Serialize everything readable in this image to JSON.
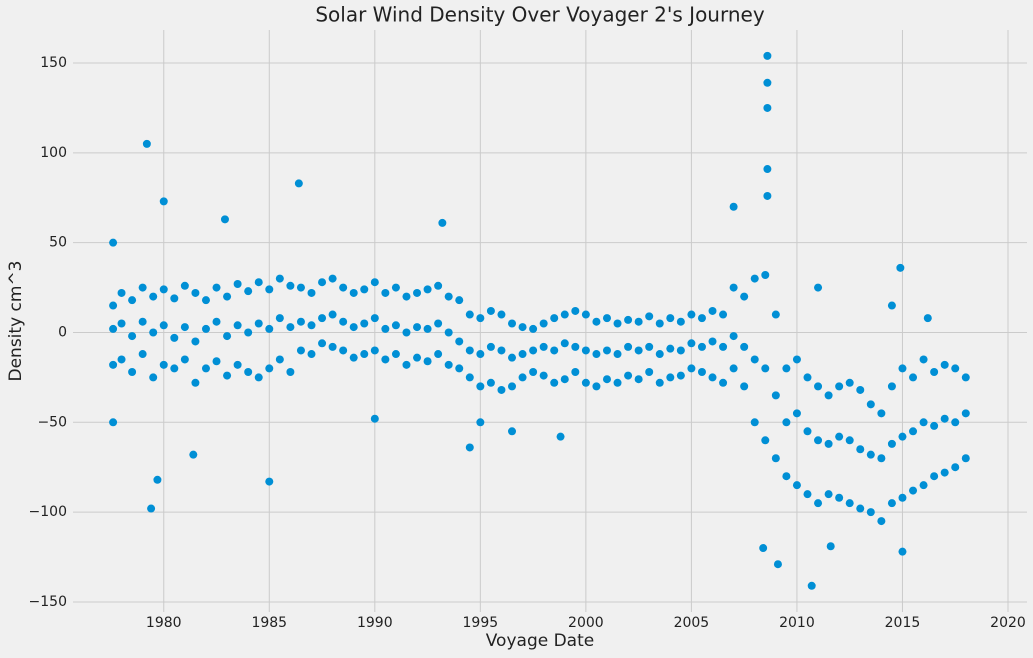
{
  "chart_data": {
    "type": "scatter",
    "title": "Solar Wind Density Over Voyager 2's Journey",
    "xlabel": "Voyage Date",
    "ylabel": "Density cm^3",
    "color": "#008fd5",
    "grid": true,
    "xlim": [
      1975.7,
      2020.9
    ],
    "ylim": [
      -155.6,
      168.4
    ],
    "xticks": [
      1980,
      1985,
      1990,
      1995,
      2000,
      2005,
      2010,
      2015,
      2020
    ],
    "yticks": [
      {
        "value": -150,
        "label": "−150"
      },
      {
        "value": -100,
        "label": "−100"
      },
      {
        "value": -50,
        "label": "−50"
      },
      0,
      50,
      100,
      150
    ],
    "x": [
      1977.6,
      1977.6,
      1977.6,
      1978.0,
      1978.0,
      1978.0,
      1978.5,
      1978.5,
      1978.5,
      1979.0,
      1979.0,
      1979.0,
      1979.5,
      1979.5,
      1979.5,
      1980.0,
      1980.0,
      1980.0,
      1980.5,
      1980.5,
      1980.5,
      1981.0,
      1981.0,
      1981.0,
      1981.5,
      1981.5,
      1981.5,
      1982.0,
      1982.0,
      1982.0,
      1982.5,
      1982.5,
      1982.5,
      1983.0,
      1983.0,
      1983.0,
      1983.5,
      1983.5,
      1983.5,
      1984.0,
      1984.0,
      1984.0,
      1984.5,
      1984.5,
      1984.5,
      1985.0,
      1985.0,
      1985.0,
      1985.5,
      1985.5,
      1985.5,
      1986.0,
      1986.0,
      1986.0,
      1986.5,
      1986.5,
      1986.5,
      1987.0,
      1987.0,
      1987.0,
      1987.5,
      1987.5,
      1987.5,
      1988.0,
      1988.0,
      1988.0,
      1988.5,
      1988.5,
      1988.5,
      1989.0,
      1989.0,
      1989.0,
      1989.5,
      1989.5,
      1989.5,
      1990.0,
      1990.0,
      1990.0,
      1990.5,
      1990.5,
      1990.5,
      1991.0,
      1991.0,
      1991.0,
      1991.5,
      1991.5,
      1991.5,
      1992.0,
      1992.0,
      1992.0,
      1992.5,
      1992.5,
      1992.5,
      1993.0,
      1993.0,
      1993.0,
      1993.5,
      1993.5,
      1993.5,
      1994.0,
      1994.0,
      1994.0,
      1994.5,
      1994.5,
      1994.5,
      1995.0,
      1995.0,
      1995.0,
      1995.5,
      1995.5,
      1995.5,
      1996.0,
      1996.0,
      1996.0,
      1996.5,
      1996.5,
      1996.5,
      1997.0,
      1997.0,
      1997.0,
      1997.5,
      1997.5,
      1997.5,
      1998.0,
      1998.0,
      1998.0,
      1998.5,
      1998.5,
      1998.5,
      1999.0,
      1999.0,
      1999.0,
      1999.5,
      1999.5,
      1999.5,
      2000.0,
      2000.0,
      2000.0,
      2000.5,
      2000.5,
      2000.5,
      2001.0,
      2001.0,
      2001.0,
      2001.5,
      2001.5,
      2001.5,
      2002.0,
      2002.0,
      2002.0,
      2002.5,
      2002.5,
      2002.5,
      2003.0,
      2003.0,
      2003.0,
      2003.5,
      2003.5,
      2003.5,
      2004.0,
      2004.0,
      2004.0,
      2004.5,
      2004.5,
      2004.5,
      2005.0,
      2005.0,
      2005.0,
      2005.5,
      2005.5,
      2005.5,
      2006.0,
      2006.0,
      2006.0,
      2006.5,
      2006.5,
      2006.5,
      2007.0,
      2007.0,
      2007.0,
      2007.5,
      2007.5,
      2007.5,
      2008.0,
      2008.0,
      2008.0,
      2008.5,
      2008.5,
      2008.5,
      2009.0,
      2009.0,
      2009.0,
      2009.5,
      2009.5,
      2009.5,
      2010.0,
      2010.0,
      2010.0,
      2010.5,
      2010.5,
      2010.5,
      2011.0,
      2011.0,
      2011.0,
      2011.5,
      2011.5,
      2011.5,
      2012.0,
      2012.0,
      2012.0,
      2012.5,
      2012.5,
      2012.5,
      2013.0,
      2013.0,
      2013.0,
      2013.5,
      2013.5,
      2013.5,
      2014.0,
      2014.0,
      2014.0,
      2014.5,
      2014.5,
      2014.5,
      2015.0,
      2015.0,
      2015.0,
      2015.5,
      2015.5,
      2015.5,
      2016.0,
      2016.0,
      2016.0,
      2016.5,
      2016.5,
      2016.5,
      2017.0,
      2017.0,
      2017.0,
      2017.5,
      2017.5,
      2017.5,
      2018.0,
      2018.0,
      2018.0,
      1977.6,
      1977.6,
      1979.2,
      1979.4,
      1979.7,
      1980.0,
      1981.4,
      1982.9,
      1985.0,
      1986.4,
      1993.2,
      1994.5,
      1990.0,
      1995.0,
      1996.5,
      1998.8,
      2007.0,
      2008.6,
      2008.6,
      2008.6,
      2008.6,
      2008.6,
      2008.4,
      2009.1,
      2010.7,
      2011.0,
      2014.9,
      2015.0,
      2011.6,
      2016.2,
      2014.5
    ],
    "values": [
      15,
      2,
      -18,
      22,
      5,
      -15,
      18,
      -2,
      -22,
      25,
      6,
      -12,
      20,
      0,
      -25,
      24,
      4,
      -18,
      19,
      -3,
      -20,
      26,
      3,
      -15,
      22,
      -5,
      -28,
      18,
      2,
      -20,
      25,
      6,
      -16,
      20,
      -2,
      -24,
      27,
      4,
      -18,
      23,
      0,
      -22,
      28,
      5,
      -25,
      24,
      2,
      -20,
      30,
      8,
      -15,
      26,
      3,
      -22,
      25,
      6,
      -10,
      22,
      4,
      -12,
      28,
      8,
      -6,
      30,
      10,
      -8,
      25,
      6,
      -10,
      22,
      3,
      -14,
      24,
      5,
      -12,
      28,
      8,
      -10,
      22,
      2,
      -15,
      25,
      4,
      -12,
      20,
      0,
      -18,
      22,
      3,
      -14,
      24,
      2,
      -16,
      26,
      5,
      -12,
      20,
      0,
      -18,
      18,
      -5,
      -20,
      10,
      -10,
      -25,
      8,
      -12,
      -30,
      12,
      -8,
      -28,
      10,
      -10,
      -32,
      5,
      -14,
      -30,
      3,
      -12,
      -25,
      2,
      -10,
      -22,
      5,
      -8,
      -24,
      8,
      -10,
      -28,
      10,
      -6,
      -26,
      12,
      -8,
      -22,
      10,
      -10,
      -28,
      6,
      -12,
      -30,
      8,
      -10,
      -26,
      5,
      -12,
      -28,
      7,
      -8,
      -24,
      6,
      -10,
      -26,
      9,
      -8,
      -22,
      5,
      -12,
      -28,
      8,
      -9,
      -25,
      6,
      -10,
      -24,
      10,
      -6,
      -20,
      8,
      -8,
      -22,
      12,
      -5,
      -25,
      10,
      -8,
      -28,
      25,
      -2,
      -20,
      20,
      -8,
      -30,
      30,
      -15,
      -50,
      32,
      -20,
      -60,
      10,
      -35,
      -70,
      -20,
      -50,
      -80,
      -15,
      -45,
      -85,
      -25,
      -55,
      -90,
      -30,
      -60,
      -95,
      -35,
      -62,
      -90,
      -30,
      -58,
      -92,
      -28,
      -60,
      -95,
      -32,
      -65,
      -98,
      -40,
      -68,
      -100,
      -45,
      -70,
      -105,
      -30,
      -62,
      -95,
      -20,
      -58,
      -92,
      -25,
      -55,
      -88,
      -15,
      -50,
      -85,
      -22,
      -52,
      -80,
      -18,
      -48,
      -78,
      -20,
      -50,
      -75,
      -25,
      -45,
      -70,
      -50,
      50,
      105,
      -98,
      -82,
      73,
      -68,
      63,
      -83,
      83,
      61,
      -64,
      -48,
      -50,
      -55,
      -58,
      70,
      154,
      139,
      125,
      91,
      76,
      -120,
      -129,
      -141,
      25,
      36,
      -122,
      -119,
      8,
      15
    ]
  }
}
